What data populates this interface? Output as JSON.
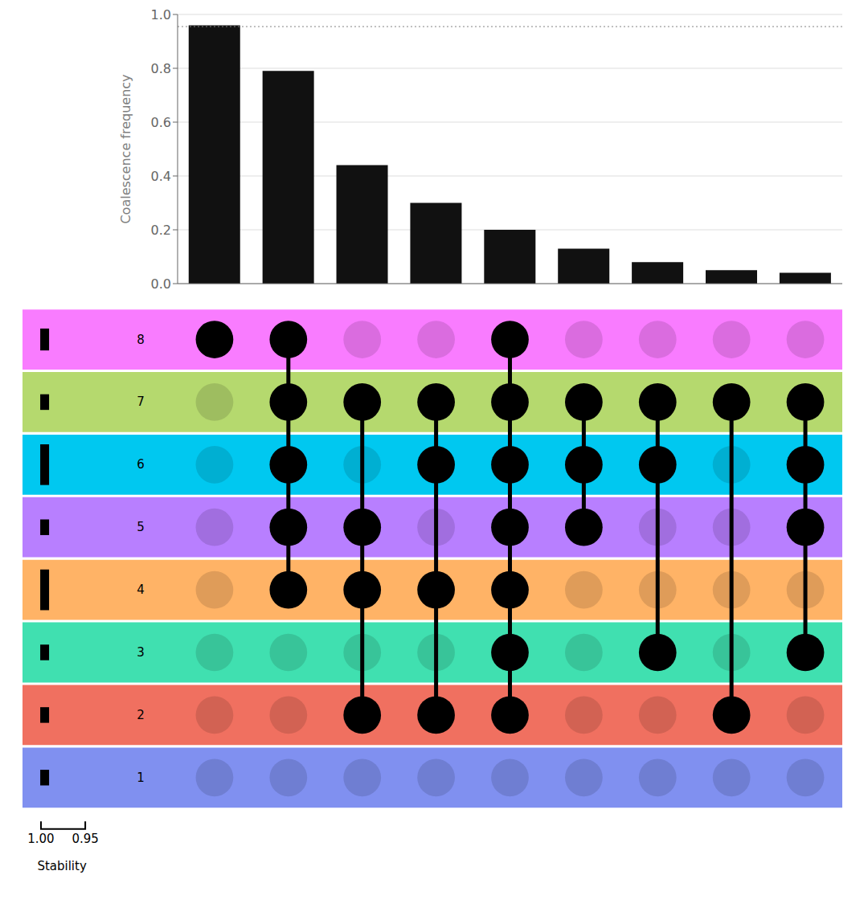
{
  "chart_data": [
    {
      "type": "bar",
      "categories": [
        null,
        null,
        null,
        null,
        null,
        null,
        null,
        null,
        null
      ],
      "values": [
        0.96,
        0.79,
        0.44,
        0.3,
        0.2,
        0.13,
        0.08,
        0.05,
        0.04
      ],
      "color": "#111111",
      "ylabel": "Coalescence frequency",
      "ylim": [
        0,
        1.0
      ],
      "yticks": [
        {
          "value": 0.0,
          "label": "0.0"
        },
        0.2,
        0.4,
        0.6,
        0.8,
        {
          "value": 1.0,
          "label": "1.0"
        }
      ],
      "grid": true,
      "tick_labels": "y",
      "reference_line": 0.955
    },
    {
      "type": "dot_matrix",
      "rows": [
        "8",
        "7",
        "6",
        "5",
        "4",
        "3",
        "2",
        "1"
      ],
      "row_colors": [
        "#f97cff",
        "#b5d96e",
        "#00c8f0",
        "#b87fff",
        "#ffb366",
        "#40e0b0",
        "#f07060",
        "#8090f0"
      ],
      "columns": 9,
      "connections": [
        {
          "col": 0,
          "rows": [
            0
          ]
        },
        {
          "col": 1,
          "rows": [
            0,
            1,
            2,
            3,
            4
          ]
        },
        {
          "col": 2,
          "rows": [
            1,
            3,
            4,
            6
          ]
        },
        {
          "col": 3,
          "rows": [
            1,
            2,
            4,
            6
          ]
        },
        {
          "col": 4,
          "rows": [
            0,
            1,
            2,
            3,
            4,
            5,
            6
          ]
        },
        {
          "col": 5,
          "rows": [
            1,
            2,
            3
          ]
        },
        {
          "col": 6,
          "rows": [
            1,
            2,
            5
          ]
        },
        {
          "col": 7,
          "rows": [
            1,
            6
          ]
        },
        {
          "col": 8,
          "rows": [
            1,
            2,
            3,
            5
          ]
        }
      ],
      "stability": [
        0.35,
        0.25,
        0.65,
        0.25,
        0.65,
        0.25,
        0.25,
        0.25
      ],
      "stability_label": "Stability",
      "stability_ticks": [
        {
          "value": 1.0,
          "label": "1.00"
        },
        0.95
      ]
    }
  ]
}
